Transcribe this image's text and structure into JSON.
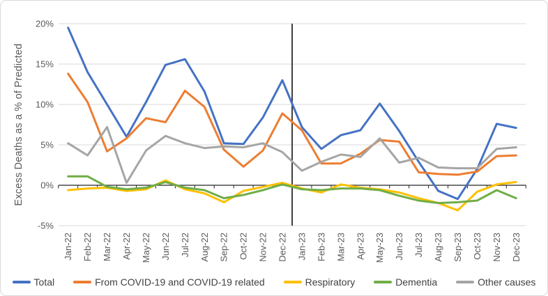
{
  "chart_data": {
    "type": "line",
    "title": "",
    "xlabel": "",
    "ylabel": "Excess Deaths as a % of Predicted",
    "ylim": [
      -5,
      20
    ],
    "yticks": [
      20,
      15,
      10,
      5,
      0,
      -5
    ],
    "ytick_labels": [
      "20%",
      "15%",
      "10%",
      "5%",
      "0%",
      "-5%"
    ],
    "grid": true,
    "legend_position": "bottom",
    "categories": [
      "Jan-22",
      "Feb-22",
      "Mar-22",
      "Apr-22",
      "May-22",
      "Jun-22",
      "Jul-22",
      "Aug-22",
      "Sep-22",
      "Oct-22",
      "Nov-22",
      "Dec-22",
      "Jan-23",
      "Feb-23",
      "Mar-23",
      "Apr-23",
      "May-23",
      "Jun-23",
      "Jul-23",
      "Aug-23",
      "Sep-23",
      "Oct-23",
      "Nov-23",
      "Dec-23"
    ],
    "series": [
      {
        "name": "Total",
        "color": "#4472C4",
        "values": [
          19.5,
          14.0,
          10.0,
          6.0,
          10.3,
          14.9,
          15.6,
          11.6,
          5.2,
          5.1,
          8.4,
          13.0,
          7.2,
          4.5,
          6.2,
          6.8,
          10.1,
          6.7,
          2.9,
          -0.7,
          -1.7,
          2.0,
          7.6,
          7.1
        ]
      },
      {
        "name": "From COVID-19 and COVID-19 related",
        "color": "#ED7D31",
        "values": [
          13.8,
          10.3,
          4.2,
          5.8,
          8.3,
          7.8,
          11.7,
          9.7,
          4.4,
          2.3,
          4.3,
          8.9,
          6.8,
          2.7,
          2.7,
          3.9,
          5.6,
          5.4,
          1.6,
          1.4,
          1.3,
          1.7,
          3.6,
          3.7
        ]
      },
      {
        "name": "Respiratory",
        "color": "#FFC000",
        "values": [
          -0.6,
          -0.4,
          -0.3,
          -0.7,
          -0.5,
          0.6,
          -0.5,
          -1.0,
          -2.1,
          -0.7,
          -0.2,
          0.3,
          -0.4,
          -0.9,
          0.1,
          -0.3,
          -0.5,
          -0.9,
          -1.6,
          -2.2,
          -3.1,
          -0.8,
          0.1,
          0.4
        ]
      },
      {
        "name": "Dementia",
        "color": "#70AD47",
        "values": [
          1.1,
          1.1,
          -0.2,
          -0.5,
          -0.3,
          0.4,
          -0.3,
          -0.6,
          -1.6,
          -1.2,
          -0.6,
          0.1,
          -0.5,
          -0.6,
          -0.4,
          -0.4,
          -0.6,
          -1.3,
          -1.9,
          -2.2,
          -2.1,
          -1.9,
          -0.6,
          -1.6
        ]
      },
      {
        "name": "Other causes",
        "color": "#A5A5A5",
        "values": [
          5.2,
          3.7,
          7.2,
          0.3,
          4.3,
          6.1,
          5.2,
          4.6,
          4.8,
          4.7,
          5.2,
          4.1,
          1.8,
          2.9,
          3.8,
          3.5,
          5.8,
          2.8,
          3.4,
          2.2,
          2.1,
          2.1,
          4.5,
          4.7
        ]
      }
    ],
    "annotations": [
      {
        "type": "vline",
        "between": [
          "Dec-22",
          "Jan-23"
        ],
        "color": "#000000"
      }
    ],
    "colors": {
      "gridline": "#D9D9D9",
      "axis": "#262626",
      "tick_label": "#595959",
      "axis_title": "#595959",
      "legend_text": "#404040",
      "frame_border": "#D9D9D9",
      "divider": "#000000"
    }
  }
}
